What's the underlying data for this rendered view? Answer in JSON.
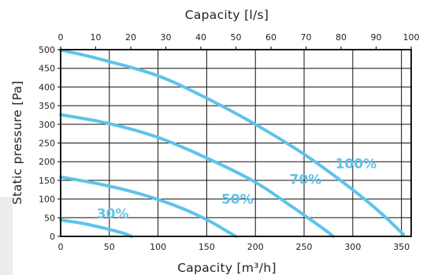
{
  "chart_data": {
    "type": "line",
    "xlabel_top": "Capacity [l/s]",
    "xlabel_bottom": "Capacity [m³/h]",
    "ylabel": "Static pressure [Pa]",
    "x_bottom_lim": [
      0,
      360
    ],
    "x_top_lim": [
      0,
      100
    ],
    "ylim": [
      0,
      500
    ],
    "x_bottom_ticks": [
      "0",
      "50",
      "100",
      "150",
      "200",
      "250",
      "300",
      "350"
    ],
    "x_top_ticks": [
      "0",
      "10",
      "20",
      "30",
      "40",
      "50",
      "60",
      "70",
      "80",
      "90",
      "100"
    ],
    "y_ticks": [
      "0",
      "50",
      "100",
      "150",
      "200",
      "250",
      "300",
      "350",
      "400",
      "450",
      "500"
    ],
    "grid": true,
    "line_color": "#5ec3ea",
    "series": [
      {
        "name": "100%",
        "x": [
          0,
          40,
          100,
          150,
          200,
          250,
          300,
          330,
          352
        ],
        "y": [
          499,
          475,
          430,
          370,
          300,
          220,
          125,
          60,
          5
        ]
      },
      {
        "name": "70%",
        "x": [
          0,
          50,
          100,
          150,
          200,
          240,
          270,
          280
        ],
        "y": [
          326,
          302,
          265,
          210,
          145,
          75,
          20,
          0
        ]
      },
      {
        "name": "50%",
        "x": [
          0,
          40,
          80,
          120,
          150,
          170,
          180
        ],
        "y": [
          159,
          140,
          115,
          80,
          45,
          15,
          0
        ]
      },
      {
        "name": "30%",
        "x": [
          0,
          20,
          45,
          65,
          73
        ],
        "y": [
          44,
          36,
          22,
          8,
          0
        ]
      }
    ]
  }
}
